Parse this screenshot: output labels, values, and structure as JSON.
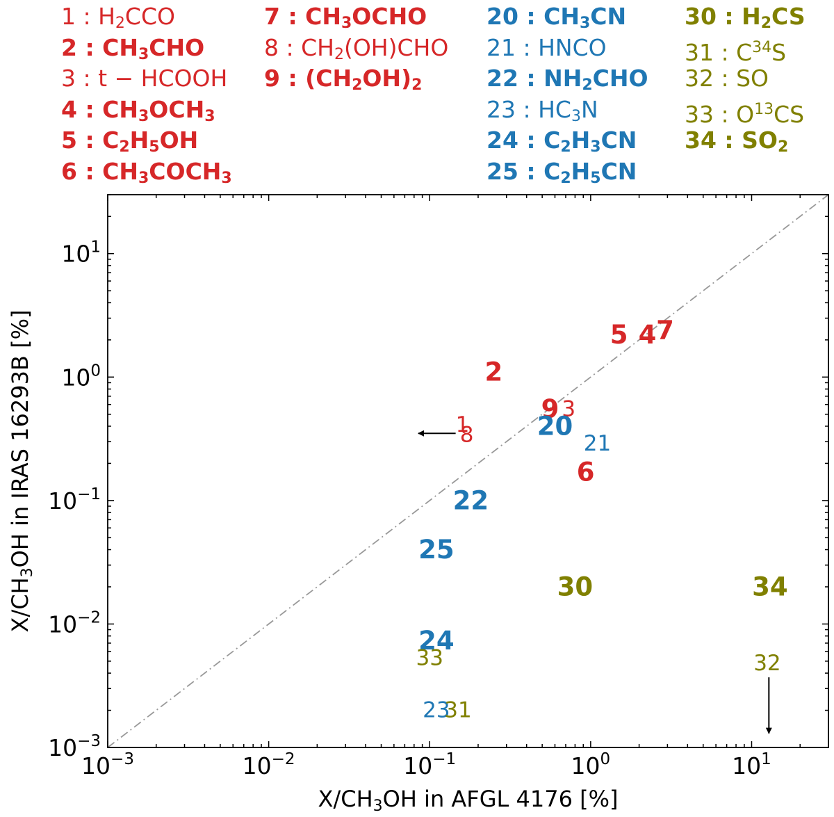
{
  "colors": {
    "red": "#d62728",
    "blue": "#1f77b4",
    "olive": "#808000",
    "arrow": "#000000",
    "diag": "#999999"
  },
  "legend_columns": [
    [
      {
        "num": "1",
        "html": "H<sub>2</sub>CCO",
        "bold": false,
        "group": "red"
      },
      {
        "num": "2",
        "html": "CH<sub>3</sub>CHO",
        "bold": true,
        "group": "red"
      },
      {
        "num": "3",
        "html": "t &minus; HCOOH",
        "bold": false,
        "group": "red"
      },
      {
        "num": "4",
        "html": "CH<sub>3</sub>OCH<sub>3</sub>",
        "bold": true,
        "group": "red"
      },
      {
        "num": "5",
        "html": "C<sub>2</sub>H<sub>5</sub>OH",
        "bold": true,
        "group": "red"
      },
      {
        "num": "6",
        "html": "CH<sub>3</sub>COCH<sub>3</sub>",
        "bold": true,
        "group": "red"
      }
    ],
    [
      {
        "num": "7",
        "html": "CH<sub>3</sub>OCHO",
        "bold": true,
        "group": "red"
      },
      {
        "num": "8",
        "html": "CH<sub>2</sub>(OH)CHO",
        "bold": false,
        "group": "red"
      },
      {
        "num": "9",
        "html": "(CH<sub>2</sub>OH)<sub>2</sub>",
        "bold": true,
        "group": "red"
      }
    ],
    [
      {
        "num": "20",
        "html": "CH<sub>3</sub>CN",
        "bold": true,
        "group": "blue"
      },
      {
        "num": "21",
        "html": "HNCO",
        "bold": false,
        "group": "blue"
      },
      {
        "num": "22",
        "html": "NH<sub>2</sub>CHO",
        "bold": true,
        "group": "blue"
      },
      {
        "num": "23",
        "html": "HC<sub>3</sub>N",
        "bold": false,
        "group": "blue"
      },
      {
        "num": "24",
        "html": "C<sub>2</sub>H<sub>3</sub>CN",
        "bold": true,
        "group": "blue"
      },
      {
        "num": "25",
        "html": "C<sub>2</sub>H<sub>5</sub>CN",
        "bold": true,
        "group": "blue"
      }
    ],
    [
      {
        "num": "30",
        "html": "H<sub>2</sub>CS",
        "bold": true,
        "group": "olive"
      },
      {
        "num": "31",
        "html": "C<sup>34</sup>S",
        "bold": false,
        "group": "olive"
      },
      {
        "num": "32",
        "html": "SO",
        "bold": false,
        "group": "olive"
      },
      {
        "num": "33",
        "html": "O<sup>13</sup>CS",
        "bold": false,
        "group": "olive"
      },
      {
        "num": "34",
        "html": "SO<sub>2</sub>",
        "bold": true,
        "group": "olive"
      }
    ]
  ],
  "chart_data": {
    "type": "scatter",
    "xlabel_html": "X/CH<tspan baseline-shift=\"-25%\" font-size=\"22\">3</tspan>OH in AFGL 4176 [%]",
    "ylabel_html": "X/CH<tspan baseline-shift=\"-25%\" font-size=\"22\">3</tspan>OH in IRAS 16293B [%]",
    "xscale": "log",
    "yscale": "log",
    "xlim": [
      0.001,
      30
    ],
    "ylim": [
      0.001,
      30
    ],
    "xticks": [
      0.001,
      0.01,
      0.1,
      1,
      10
    ],
    "yticks": [
      0.001,
      0.01,
      0.1,
      1,
      10
    ],
    "xtick_labels": [
      [
        "10",
        "−3"
      ],
      [
        "10",
        "−2"
      ],
      [
        "10",
        "−1"
      ],
      [
        "10",
        "0"
      ],
      [
        "10",
        "1"
      ]
    ],
    "ytick_labels": [
      [
        "10",
        "−3"
      ],
      [
        "10",
        "−2"
      ],
      [
        "10",
        "−1"
      ],
      [
        "10",
        "0"
      ],
      [
        "10",
        "1"
      ]
    ],
    "reference_line": "y = x",
    "points": [
      {
        "label": "1",
        "x": 0.16,
        "y": 0.41,
        "group": "red",
        "bold": false
      },
      {
        "label": "2",
        "x": 0.25,
        "y": 1.1,
        "group": "red",
        "bold": true
      },
      {
        "label": "3",
        "x": 0.73,
        "y": 0.55,
        "group": "red",
        "bold": false
      },
      {
        "label": "4",
        "x": 2.25,
        "y": 2.2,
        "group": "red",
        "bold": true
      },
      {
        "label": "5",
        "x": 1.5,
        "y": 2.2,
        "group": "red",
        "bold": true
      },
      {
        "label": "6",
        "x": 0.93,
        "y": 0.17,
        "group": "red",
        "bold": true
      },
      {
        "label": "7",
        "x": 2.9,
        "y": 2.4,
        "group": "red",
        "bold": true
      },
      {
        "label": "8",
        "x": 0.17,
        "y": 0.34,
        "group": "red",
        "bold": false
      },
      {
        "label": "9",
        "x": 0.56,
        "y": 0.55,
        "group": "red",
        "bold": true
      },
      {
        "label": "20",
        "x": 0.6,
        "y": 0.4,
        "group": "blue",
        "bold": true
      },
      {
        "label": "21",
        "x": 1.1,
        "y": 0.29,
        "group": "blue",
        "bold": false
      },
      {
        "label": "22",
        "x": 0.18,
        "y": 0.1,
        "group": "blue",
        "bold": true
      },
      {
        "label": "23",
        "x": 0.11,
        "y": 0.002,
        "group": "blue",
        "bold": false
      },
      {
        "label": "24",
        "x": 0.11,
        "y": 0.0073,
        "group": "blue",
        "bold": true
      },
      {
        "label": "25",
        "x": 0.11,
        "y": 0.04,
        "group": "blue",
        "bold": true
      },
      {
        "label": "30",
        "x": 0.8,
        "y": 0.02,
        "group": "olive",
        "bold": true
      },
      {
        "label": "31",
        "x": 0.15,
        "y": 0.002,
        "group": "olive",
        "bold": false
      },
      {
        "label": "32",
        "x": 12.5,
        "y": 0.0048,
        "group": "olive",
        "bold": false
      },
      {
        "label": "33",
        "x": 0.1,
        "y": 0.0053,
        "group": "olive",
        "bold": false
      },
      {
        "label": "34",
        "x": 13,
        "y": 0.02,
        "group": "olive",
        "bold": true
      }
    ],
    "upper_limits": [
      {
        "for": "1/8",
        "direction": "left",
        "x_from": 0.145,
        "x_to": 0.085,
        "y": 0.35
      },
      {
        "for": "32",
        "direction": "down",
        "x": 12.8,
        "y_from": 0.0037,
        "y_to": 0.0013
      }
    ]
  }
}
